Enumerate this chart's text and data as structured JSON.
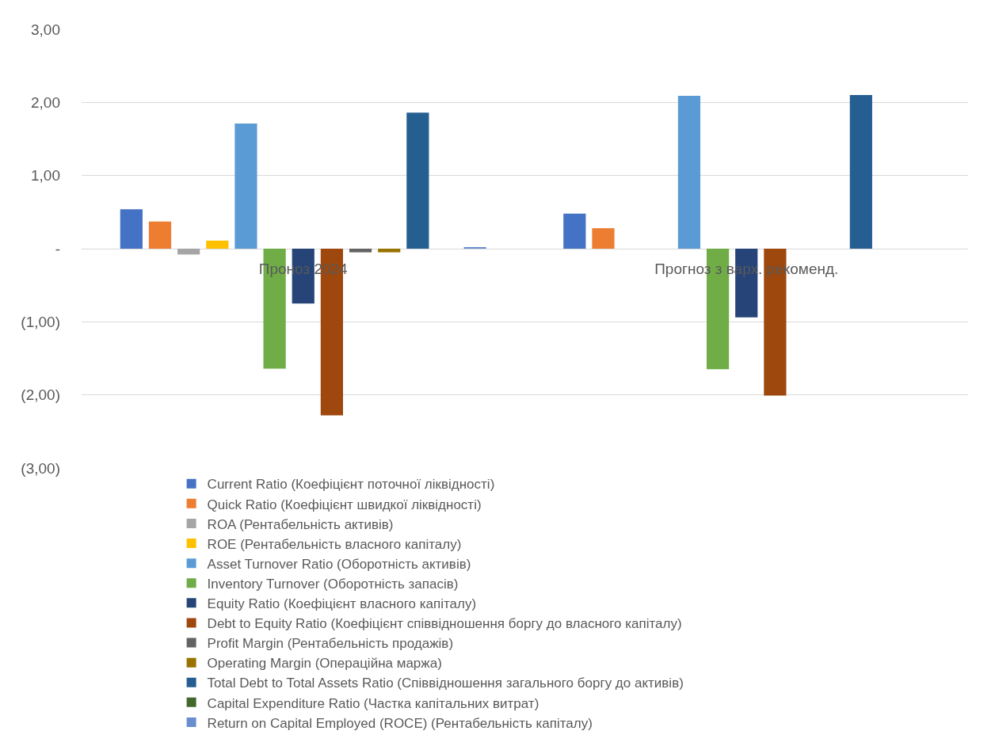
{
  "chart_data": {
    "type": "bar",
    "categories": [
      "Проноз 2024",
      "Прогноз з варх. рекоменд."
    ],
    "series": [
      {
        "name": "Current Ratio (Коефіцієнт поточної ліквідності)",
        "color": "#4472c4",
        "values": [
          0.54,
          0.48
        ]
      },
      {
        "name": "Quick Ratio (Коефіцієнт швидкої ліквідності)",
        "color": "#ed7d31",
        "values": [
          0.37,
          0.28
        ]
      },
      {
        "name": "ROA (Рентабельність активів)",
        "color": "#a5a5a5",
        "values": [
          -0.08,
          null
        ]
      },
      {
        "name": "ROE (Рентабельність власного капіталу)",
        "color": "#ffc000",
        "values": [
          0.11,
          0.0
        ]
      },
      {
        "name": "Asset Turnover Ratio (Оборотність активів)",
        "color": "#5b9bd5",
        "values": [
          1.71,
          2.09
        ]
      },
      {
        "name": "Inventory Turnover (Оборотність запасів)",
        "color": "#70ad47",
        "values": [
          -1.64,
          -1.65
        ]
      },
      {
        "name": "Equity Ratio (Коефіцієнт власного капіталу)",
        "color": "#264478",
        "values": [
          -0.75,
          -0.94
        ]
      },
      {
        "name": "Debt to Equity Ratio (Коефіцієнт співвідношення боргу до власного капіталу)",
        "color": "#9e480e",
        "values": [
          -2.28,
          -2.01
        ]
      },
      {
        "name": "Profit Margin (Рентабельність продажів)",
        "color": "#636363",
        "values": [
          -0.05,
          null
        ]
      },
      {
        "name": "Operating Margin (Операційна маржа)",
        "color": "#997300",
        "values": [
          -0.05,
          null
        ]
      },
      {
        "name": "Total Debt to Total Assets Ratio (Співвідношення загального боргу до активів)",
        "color": "#255e91",
        "values": [
          1.86,
          2.1
        ]
      },
      {
        "name": "Capital Expenditure Ratio (Частка капітальних витрат)",
        "color": "#43682b",
        "values": [
          null,
          null
        ]
      },
      {
        "name": "Return on Capital Employed (ROCE) (Рентабельність капіталу)",
        "color": "#698ed0",
        "values": [
          0.02,
          null
        ]
      }
    ],
    "ylim": [
      -3,
      3
    ],
    "yticks": [
      {
        "value": 3,
        "label": "3,00"
      },
      {
        "value": 2,
        "label": "2,00"
      },
      {
        "value": 1,
        "label": "1,00"
      },
      {
        "value": 0,
        "label": "-"
      },
      {
        "value": -1,
        "label": "(1,00)"
      },
      {
        "value": -2,
        "label": "(2,00)"
      },
      {
        "value": -3,
        "label": "(3,00)"
      }
    ],
    "grid": "y",
    "legend": "bottom"
  }
}
